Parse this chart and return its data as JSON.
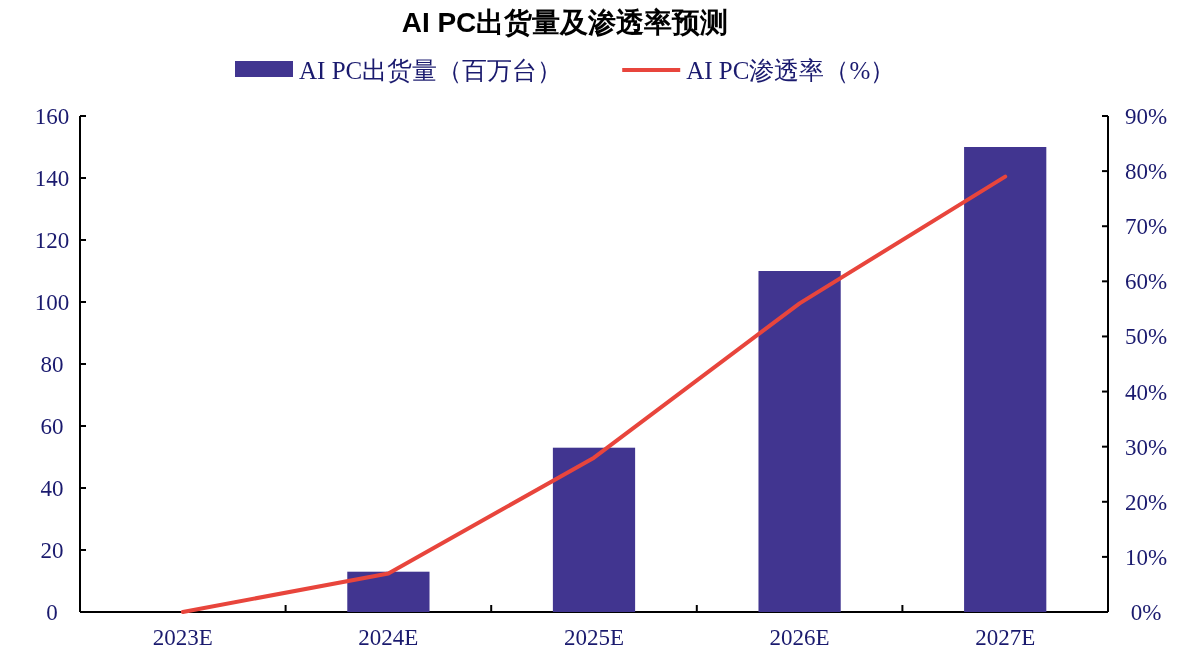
{
  "chart_data": {
    "type": "bar",
    "title": "AI PC出货量及渗透率预测",
    "categories": [
      "2023E",
      "2024E",
      "2025E",
      "2026E",
      "2027E"
    ],
    "series": [
      {
        "name": "AI PC出货量（百万台）",
        "color": "#413590",
        "values": [
          0,
          13,
          53,
          110,
          150
        ]
      },
      {
        "name": "AI PC渗透率（%）",
        "type": "line",
        "axis": "y2",
        "color": "#e8453c",
        "values": [
          0,
          7,
          28,
          56,
          79
        ]
      }
    ],
    "ylim": [
      0,
      160
    ],
    "yticks": [
      0,
      20,
      40,
      60,
      80,
      100,
      120,
      140,
      160
    ],
    "y2lim": [
      0,
      90
    ],
    "y2ticks": [
      {
        "value": 0,
        "label": "0%"
      },
      {
        "value": 10,
        "label": "10%"
      },
      {
        "value": 20,
        "label": "20%"
      },
      {
        "value": 30,
        "label": "30%"
      },
      {
        "value": 40,
        "label": "40%"
      },
      {
        "value": 50,
        "label": "50%"
      },
      {
        "value": 60,
        "label": "60%"
      },
      {
        "value": 70,
        "label": "70%"
      },
      {
        "value": 80,
        "label": "80%"
      },
      {
        "value": 90,
        "label": "90%"
      }
    ],
    "grid": false,
    "legend": "top",
    "marker": "none",
    "line_style": "solid"
  }
}
